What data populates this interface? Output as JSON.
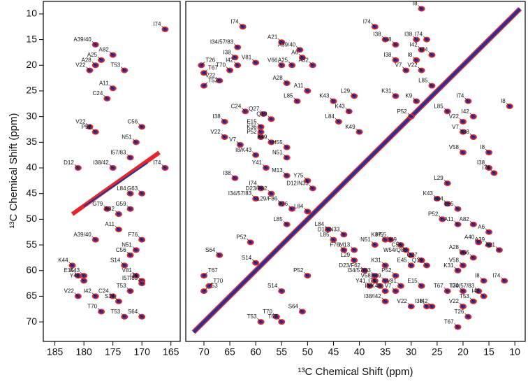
{
  "chart_data": [
    {
      "type": "scatter",
      "y_label": "¹³C Chemical Shift (ppm)",
      "xlim": [
        187,
        163.4
      ],
      "ylim": [
        7.56,
        73.8
      ],
      "xticks": [
        185,
        180,
        175,
        170,
        165
      ],
      "yticks": [
        10,
        15,
        20,
        25,
        30,
        35,
        40,
        45,
        50,
        55,
        60,
        65,
        70
      ],
      "colors": [
        "#e3262b",
        "#22329b"
      ],
      "point_labels": [
        "I74",
        "A39/40",
        "A25",
        "A82",
        "A28",
        "V22",
        "T53",
        "A11",
        "C24",
        "V22",
        "P52",
        "C56",
        "N51",
        "I57/83",
        "D12",
        "I38/42",
        "I74",
        "L84",
        "G63",
        "G79",
        "A82",
        "G59",
        "A11",
        "A39/40",
        "F76",
        "N51",
        "C56",
        "K44",
        "S14",
        "K43",
        "E15",
        "Y41",
        "V81",
        "I74",
        "I57/83",
        "T53",
        "V22",
        "I42",
        "C24",
        "S14",
        "T70",
        "T53",
        "S64"
      ],
      "x": [
        166,
        178,
        177,
        175,
        178,
        179,
        173,
        175,
        176,
        179,
        178,
        170,
        171,
        172,
        181,
        175,
        166,
        172,
        170,
        176,
        174,
        172,
        174,
        178,
        170,
        171,
        172,
        182,
        173,
        180,
        181,
        180,
        171,
        170,
        170,
        172,
        181,
        178,
        175,
        174,
        177,
        173,
        170
      ],
      "y": [
        13,
        16,
        19,
        18,
        20,
        21,
        21,
        24.5,
        26.5,
        32,
        33,
        32,
        35,
        38,
        40,
        40,
        40,
        45,
        45,
        48,
        49,
        48,
        52,
        54,
        54,
        56,
        57,
        59,
        59,
        61,
        61,
        62,
        61,
        62,
        62.5,
        64,
        65,
        65,
        65,
        66,
        68,
        69,
        69
      ]
    },
    {
      "type": "scatter",
      "x_label": "¹³C Chemical Shift (ppm)",
      "xlim": [
        73.5,
        8
      ],
      "ylim": [
        7.56,
        73.8
      ],
      "xticks": [
        70,
        65,
        60,
        55,
        50,
        45,
        40,
        35,
        30,
        25,
        20,
        15,
        10
      ],
      "colors": [
        "#e3262b",
        "#22329b"
      ],
      "point_labels": [
        "I74",
        "A21",
        "A39/40",
        "I34/57/83",
        "I38",
        "I42",
        "V81",
        "T26",
        "T67",
        "V22",
        "T53",
        "T70",
        "A6",
        "V66",
        "A25",
        "A82",
        "A28",
        "A11",
        "L85",
        "C24",
        "Q27",
        "Q19",
        "I38",
        "E15",
        "K36",
        "V22",
        "P52",
        "K49",
        "V7",
        "H55",
        "N51",
        "I8/K43",
        "Y41",
        "I38",
        "I74",
        "I34/57/83",
        "D23/F62",
        "L29/F86",
        "M13",
        "Y75",
        "D12/N33",
        "F76",
        "L85",
        "L84",
        "P52",
        "S64",
        "S14",
        "T67",
        "T53",
        "T70",
        "S14",
        "P52",
        "T70",
        "T53",
        "T67",
        "S64",
        "I8",
        "I74",
        "I38",
        "I8",
        "I38",
        "I74",
        "I38",
        "I8",
        "I42",
        "I74",
        "V22",
        "V7",
        "L85",
        "L29",
        "K43",
        "K43",
        "L84",
        "K49",
        "K31",
        "P52",
        "K9",
        "L85",
        "I74",
        "I8",
        "I42",
        "V22",
        "V7",
        "I38",
        "V58",
        "I8",
        "I38",
        "I74",
        "L29",
        "K43",
        "L84",
        "L85",
        "P52",
        "A11",
        "A82",
        "A6",
        "A40",
        "A39",
        "A21",
        "A28",
        "V66",
        "V58",
        "K31",
        "I8",
        "I74",
        "T67",
        "T70",
        "I34/57/83",
        "I42",
        "T53",
        "V22",
        "T26",
        "T67",
        "L84",
        "L85",
        "D12/N33",
        "M13",
        "L29",
        "F76",
        "N51",
        "K87",
        "H55",
        "K9",
        "C56",
        "W54/Q80",
        "Q27",
        "Q19",
        "E45",
        "D23/F62",
        "I34/57/83",
        "V58",
        "K49",
        "P52",
        "K31",
        "I74",
        "Y41",
        "I8/K43",
        "V7",
        "V81",
        "I38/I42",
        "V22",
        "I38",
        "I42",
        "E15"
      ],
      "x": [
        62.5,
        55,
        51.5,
        63.5,
        64,
        63.5,
        60,
        70.5,
        70,
        67,
        70,
        65,
        51,
        55,
        53,
        49,
        54,
        50,
        52,
        62,
        58.5,
        57,
        66,
        59,
        59,
        66,
        59,
        57,
        63,
        54,
        54,
        60,
        58,
        64,
        59,
        60,
        57,
        55,
        54,
        50,
        49,
        53,
        54,
        50,
        61,
        67,
        60,
        70,
        70,
        69,
        55,
        50,
        56,
        59,
        55,
        51,
        28,
        37,
        35,
        33,
        29,
        27,
        33,
        29,
        28,
        26,
        28,
        31,
        26,
        41,
        45,
        42,
        44,
        40,
        33,
        30,
        29,
        23,
        19,
        11,
        18,
        20,
        20,
        18,
        20,
        15,
        15,
        14,
        23,
        25,
        23,
        21,
        24,
        21,
        18,
        15,
        17,
        15,
        13,
        20,
        18,
        20,
        21,
        16,
        12,
        23,
        20,
        17,
        16,
        18,
        20,
        19,
        21,
        46,
        45,
        43,
        41,
        41,
        43,
        37,
        35,
        34,
        32,
        31,
        30,
        28,
        27,
        30,
        39,
        37,
        37,
        35,
        33,
        35,
        36,
        38,
        35,
        33,
        32,
        35,
        30,
        27,
        26,
        28
      ],
      "y": [
        12.5,
        15.5,
        17,
        16.5,
        18.5,
        20,
        19.5,
        20,
        21.5,
        23,
        24,
        21,
        18.5,
        20,
        20,
        20,
        23.5,
        25,
        27,
        29,
        29.5,
        30.5,
        31,
        32,
        33,
        34,
        34,
        35,
        35.5,
        36,
        38,
        37.5,
        40,
        42,
        44,
        46,
        45,
        47,
        41.5,
        42.5,
        44,
        48,
        51,
        48.5,
        54.5,
        57,
        58.5,
        61,
        64,
        63,
        64,
        61,
        69,
        70,
        70,
        68,
        9,
        12.5,
        15,
        16,
        15,
        15,
        19,
        19,
        17,
        18,
        21,
        21,
        24,
        26,
        27,
        29,
        31,
        33,
        26,
        30,
        27,
        29,
        27,
        28,
        30,
        31,
        33,
        34,
        37,
        37,
        40,
        41,
        43,
        46,
        47,
        48,
        50,
        51,
        51,
        52.5,
        54.5,
        55,
        56,
        56.5,
        57.5,
        59,
        60,
        62,
        62,
        64,
        64,
        64,
        65,
        66,
        67,
        69,
        71,
        52,
        54,
        53,
        56,
        58,
        56,
        55,
        54,
        54,
        55,
        56,
        57,
        58,
        59,
        59,
        60,
        61,
        62,
        62,
        61,
        59,
        63,
        63,
        64,
        64,
        63,
        66,
        67,
        67,
        67,
        63
      ]
    }
  ]
}
